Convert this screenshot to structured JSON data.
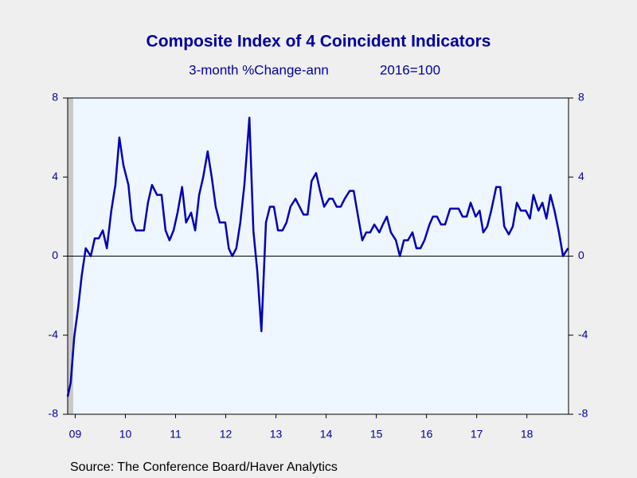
{
  "chart_data": {
    "type": "line",
    "title": "Composite Index of 4 Coincident Indicators",
    "subtitle": "3-month %Change-ann",
    "subtitle_note": "2016=100",
    "source": "Source:  The Conference Board/Haver Analytics",
    "xlim": [
      2009.35,
      2019.33
    ],
    "ylim": [
      -8,
      8
    ],
    "yticks": [
      8,
      4,
      0,
      -4,
      -8
    ],
    "xticks": [
      {
        "value": 2009.5,
        "label": "09"
      },
      {
        "value": 2010.5,
        "label": "10"
      },
      {
        "value": 2011.5,
        "label": "11"
      },
      {
        "value": 2012.5,
        "label": "12"
      },
      {
        "value": 2013.5,
        "label": "13"
      },
      {
        "value": 2014.5,
        "label": "14"
      },
      {
        "value": 2015.5,
        "label": "15"
      },
      {
        "value": 2016.5,
        "label": "16"
      },
      {
        "value": 2017.5,
        "label": "17"
      },
      {
        "value": 2018.5,
        "label": "18"
      }
    ],
    "reference_line": 0,
    "recession": [
      2009.35,
      2009.46
    ],
    "recession_color": "#c8c8c8",
    "plot_background": "#eef6ff",
    "grid": false,
    "series": [
      {
        "color": "#0000b4",
        "x": [
          2009.35,
          2009.41,
          2009.48,
          2009.56,
          2009.63,
          2009.71,
          2009.81,
          2009.89,
          2009.97,
          2010.05,
          2010.13,
          2010.22,
          2010.3,
          2010.38,
          2010.46,
          2010.56,
          2010.63,
          2010.71,
          2010.87,
          2010.95,
          2011.03,
          2011.13,
          2011.22,
          2011.3,
          2011.38,
          2011.46,
          2011.54,
          2011.63,
          2011.71,
          2011.81,
          2011.89,
          2011.97,
          2012.05,
          2012.14,
          2012.22,
          2012.3,
          2012.38,
          2012.49,
          2012.56,
          2012.63,
          2012.71,
          2012.79,
          2012.87,
          2012.97,
          2013.05,
          2013.13,
          2013.21,
          2013.3,
          2013.38,
          2013.46,
          2013.54,
          2013.63,
          2013.71,
          2013.79,
          2013.89,
          2013.97,
          2014.05,
          2014.13,
          2014.21,
          2014.3,
          2014.38,
          2014.46,
          2014.56,
          2014.63,
          2014.71,
          2014.79,
          2014.87,
          2014.97,
          2015.05,
          2015.13,
          2015.22,
          2015.3,
          2015.38,
          2015.46,
          2015.56,
          2015.63,
          2015.71,
          2015.79,
          2015.89,
          2015.97,
          2016.05,
          2016.13,
          2016.22,
          2016.3,
          2016.38,
          2016.46,
          2016.56,
          2016.63,
          2016.71,
          2016.79,
          2016.87,
          2016.97,
          2017.05,
          2017.14,
          2017.22,
          2017.3,
          2017.38,
          2017.48,
          2017.56,
          2017.63,
          2017.71,
          2017.79,
          2017.89,
          2017.97,
          2018.05,
          2018.14,
          2018.22,
          2018.3,
          2018.38,
          2018.48,
          2018.56,
          2018.63,
          2018.73,
          2018.81,
          2018.89,
          2018.97,
          2019.05,
          2019.14,
          2019.22,
          2019.32
        ],
        "values": [
          -7.1,
          -6.4,
          -4.1,
          -2.6,
          -1.0,
          0.4,
          0,
          0.9,
          0.9,
          1.3,
          0.4,
          2.3,
          3.6,
          6.0,
          4.6,
          3.6,
          1.8,
          1.3,
          1.3,
          2.7,
          3.6,
          3.1,
          3.1,
          1.3,
          0.8,
          1.3,
          2.2,
          3.5,
          1.7,
          2.2,
          1.3,
          3.1,
          4.0,
          5.3,
          4.0,
          2.5,
          1.7,
          1.7,
          0.4,
          0,
          0.4,
          1.7,
          3.6,
          7.0,
          1.3,
          -0.8,
          -3.8,
          1.7,
          2.5,
          2.5,
          1.3,
          1.3,
          1.7,
          2.5,
          2.9,
          2.5,
          2.1,
          2.1,
          3.8,
          4.2,
          3.3,
          2.5,
          2.9,
          2.9,
          2.5,
          2.5,
          2.9,
          3.3,
          3.3,
          2.1,
          0.8,
          1.2,
          1.2,
          1.6,
          1.2,
          1.6,
          2.0,
          1.2,
          0.8,
          0,
          0.8,
          0.8,
          1.2,
          0.4,
          0.4,
          0.8,
          1.6,
          2.0,
          2.0,
          1.6,
          1.6,
          2.4,
          2.4,
          2.4,
          2.0,
          2.0,
          2.7,
          2.0,
          2.3,
          1.2,
          1.5,
          2.3,
          3.5,
          3.5,
          1.5,
          1.1,
          1.5,
          2.7,
          2.3,
          2.3,
          1.9,
          3.1,
          2.3,
          2.7,
          1.9,
          3.1,
          2.3,
          1.2,
          0,
          0.4
        ]
      }
    ]
  }
}
